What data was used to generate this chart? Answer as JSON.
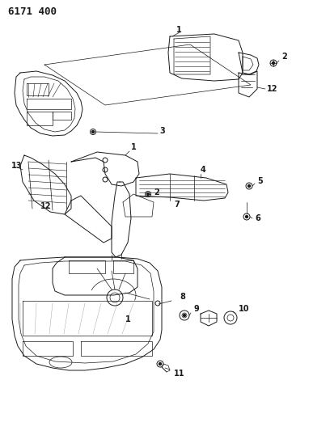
{
  "title": "6171 400",
  "bg_color": "#ffffff",
  "line_color": "#1a1a1a",
  "fig_width": 4.08,
  "fig_height": 5.33,
  "dpi": 100,
  "gray": "#888888",
  "light_gray": "#cccccc"
}
